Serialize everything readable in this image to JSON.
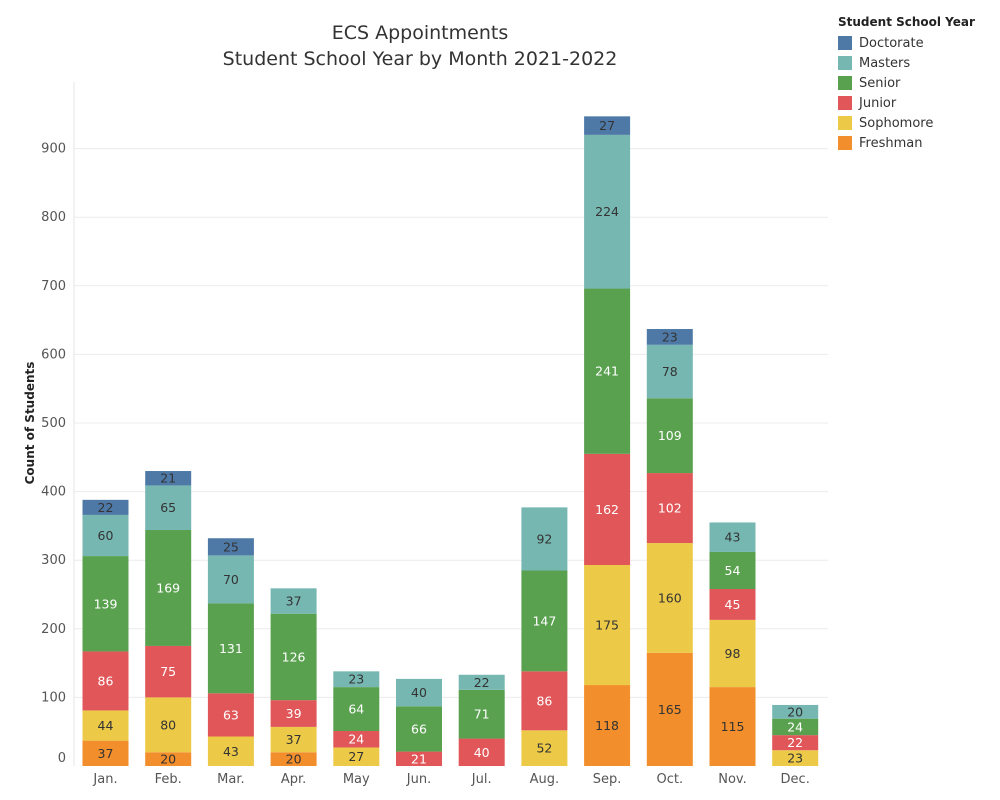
{
  "chart_data": {
    "type": "bar",
    "stacked": true,
    "title": "ECS Appointments",
    "subtitle": "Student School Year by Month 2021-2022",
    "xlabel": "",
    "ylabel": "Count of Students",
    "ylim": [
      0,
      960
    ],
    "yticks": [
      0,
      100,
      200,
      300,
      400,
      500,
      600,
      700,
      800,
      900
    ],
    "grid": true,
    "legend_title": "Student School Year",
    "legend_position": "top-right",
    "categories": [
      "Jan.",
      "Feb.",
      "Mar.",
      "Apr.",
      "May",
      "Jun.",
      "Jul.",
      "Aug.",
      "Sep.",
      "Oct.",
      "Nov.",
      "Dec."
    ],
    "series": [
      {
        "name": "Freshman",
        "color": "#F28E2B",
        "values": [
          37,
          20,
          0,
          20,
          0,
          0,
          0,
          0,
          118,
          165,
          115,
          0
        ]
      },
      {
        "name": "Sophomore",
        "color": "#EDC948",
        "values": [
          44,
          80,
          43,
          37,
          27,
          0,
          0,
          52,
          175,
          160,
          98,
          23
        ]
      },
      {
        "name": "Junior",
        "color": "#E15759",
        "values": [
          86,
          75,
          63,
          39,
          24,
          21,
          40,
          86,
          162,
          102,
          45,
          22
        ]
      },
      {
        "name": "Senior",
        "color": "#59A14F",
        "values": [
          139,
          169,
          131,
          126,
          64,
          66,
          71,
          147,
          241,
          109,
          54,
          24
        ]
      },
      {
        "name": "Masters",
        "color": "#76B7B2",
        "values": [
          60,
          65,
          70,
          37,
          23,
          40,
          22,
          92,
          224,
          78,
          43,
          20
        ]
      },
      {
        "name": "Doctorate",
        "color": "#4E79A7",
        "values": [
          22,
          21,
          25,
          0,
          0,
          0,
          0,
          0,
          27,
          23,
          0,
          0
        ]
      }
    ],
    "legend_order": [
      "Doctorate",
      "Masters",
      "Senior",
      "Junior",
      "Sophomore",
      "Freshman"
    ]
  }
}
